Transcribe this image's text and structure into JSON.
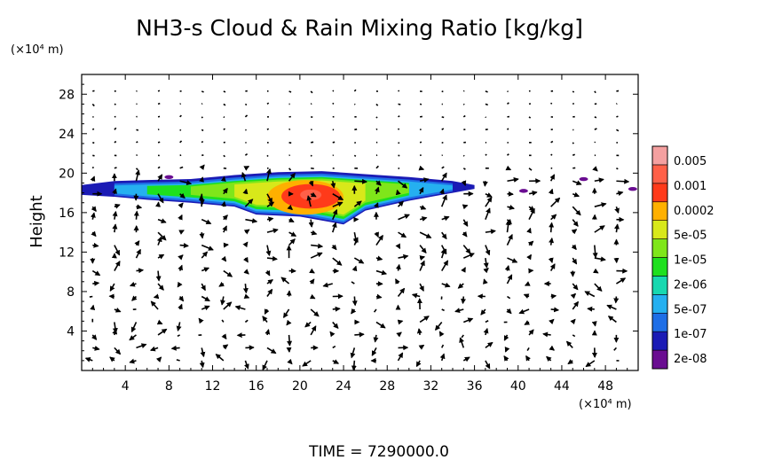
{
  "chart_data": {
    "type": "heatmap",
    "title": "NH3-s Cloud & Rain Mixing Ratio [kg/kg]",
    "ylabel": "Height",
    "y_unit": "(×10⁴ m)",
    "x_unit": "(×10⁴ m)",
    "footer": "TIME  =  7290000.0",
    "xlim": [
      0,
      51
    ],
    "ylim": [
      0,
      30
    ],
    "x_ticks": [
      4,
      8,
      12,
      16,
      20,
      24,
      28,
      32,
      36,
      40,
      44,
      48
    ],
    "y_ticks": [
      4,
      8,
      12,
      16,
      20,
      24,
      28
    ],
    "x_tick_labels": [
      "4",
      "8",
      "12",
      "16",
      "20",
      "24",
      "28",
      "32",
      "36",
      "40",
      "44",
      "48"
    ],
    "y_tick_labels": [
      "4",
      "8",
      "12",
      "16",
      "20",
      "24",
      "28"
    ],
    "colorbar": {
      "labels": [
        "0.005",
        "0.001",
        "0.0002",
        "5e-05",
        "1e-05",
        "2e-06",
        "5e-07",
        "1e-07",
        "2e-08"
      ],
      "colors": [
        "#6a0d91",
        "#1b1bb5",
        "#1e6ee6",
        "#25b0f0",
        "#18d8b0",
        "#1ee01e",
        "#7fe61a",
        "#d8e81a",
        "#ffb000",
        "#ff3a1a",
        "#ff6048",
        "#f4a0a0"
      ]
    },
    "cloud_layer": {
      "top_km_x1e4": [
        [
          0,
          18.8
        ],
        [
          3,
          19.2
        ],
        [
          6,
          19.3
        ],
        [
          10,
          19.4
        ],
        [
          14,
          19.8
        ],
        [
          18,
          20.1
        ],
        [
          22,
          20.2
        ],
        [
          26,
          19.9
        ],
        [
          30,
          19.6
        ],
        [
          34,
          19.2
        ],
        [
          36,
          18.8
        ]
      ],
      "bottom_km_x1e4": [
        [
          0,
          17.8
        ],
        [
          3,
          17.6
        ],
        [
          6,
          17.3
        ],
        [
          10,
          17.0
        ],
        [
          14,
          16.6
        ],
        [
          16,
          15.8
        ],
        [
          20,
          15.6
        ],
        [
          24,
          14.8
        ],
        [
          26,
          16.2
        ],
        [
          30,
          17.2
        ],
        [
          34,
          18.0
        ],
        [
          36,
          18.4
        ]
      ],
      "core_max": 0.005,
      "core_x_range": [
        17,
        24
      ],
      "core_y_range": [
        15.5,
        19.0
      ]
    },
    "wind_vectors": "shown as arrows on a regular grid"
  }
}
